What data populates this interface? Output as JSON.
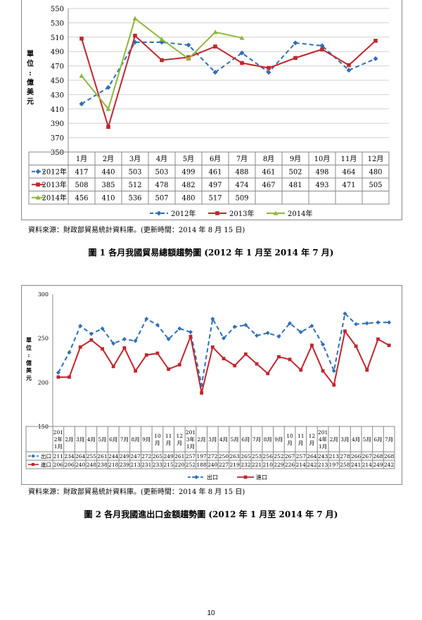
{
  "chart_data": [
    {
      "type": "line",
      "ylabel": "單位：億美元",
      "ylim": [
        350,
        550
      ],
      "yticks": [
        350,
        370,
        390,
        410,
        430,
        450,
        470,
        490,
        510,
        530,
        550
      ],
      "categories": [
        "1月",
        "2月",
        "3月",
        "4月",
        "5月",
        "6月",
        "7月",
        "8月",
        "9月",
        "10月",
        "11月",
        "12月"
      ],
      "series": [
        {
          "name": "2012年",
          "color": "#2e6fb7",
          "dash": true,
          "marker": "diamond",
          "values": [
            417,
            440,
            503,
            503,
            499,
            461,
            488,
            461,
            502,
            498,
            464,
            480
          ]
        },
        {
          "name": "2013年",
          "color": "#c0262d",
          "dash": false,
          "marker": "square",
          "values": [
            508,
            385,
            512,
            478,
            482,
            497,
            474,
            467,
            481,
            493,
            471,
            505
          ]
        },
        {
          "name": "2014年",
          "color": "#8cb83c",
          "dash": false,
          "marker": "triangle",
          "values": [
            456,
            410,
            536,
            507,
            480,
            517,
            509,
            null,
            null,
            null,
            null,
            null
          ]
        }
      ],
      "legend": "bottom"
    },
    {
      "type": "line",
      "ylabel": "單位：億美元",
      "ylim": [
        150,
        300
      ],
      "yticks": [
        150,
        200,
        250,
        300
      ],
      "categories": [
        "2012年1月",
        "2月",
        "3月",
        "4月",
        "5月",
        "6月",
        "7月",
        "8月",
        "9月",
        "10月",
        "11月",
        "12月",
        "2013年1月",
        "2月",
        "3月",
        "4月",
        "5月",
        "6月",
        "7月",
        "8月",
        "9月",
        "10月",
        "11月",
        "12月",
        "2014年1月",
        "2月",
        "3月",
        "4月",
        "5月",
        "6月",
        "7月"
      ],
      "category_lines": [
        [
          "201",
          "2年",
          "1月"
        ],
        [
          "2月"
        ],
        [
          "3月"
        ],
        [
          "4月"
        ],
        [
          "5月"
        ],
        [
          "6月"
        ],
        [
          "7月"
        ],
        [
          "8月"
        ],
        [
          "9月"
        ],
        [
          "10",
          "月"
        ],
        [
          "11",
          "月"
        ],
        [
          "12",
          "月"
        ],
        [
          "201",
          "3年",
          "1月"
        ],
        [
          "2月"
        ],
        [
          "3月"
        ],
        [
          "4月"
        ],
        [
          "5月"
        ],
        [
          "6月"
        ],
        [
          "7月"
        ],
        [
          "8月"
        ],
        [
          "9月"
        ],
        [
          "10",
          "月"
        ],
        [
          "11",
          "月"
        ],
        [
          "12",
          "月"
        ],
        [
          "201",
          "4年",
          "1月"
        ],
        [
          "2月"
        ],
        [
          "3月"
        ],
        [
          "4月"
        ],
        [
          "5月"
        ],
        [
          "6月"
        ],
        [
          "7月"
        ]
      ],
      "series": [
        {
          "name": "出口",
          "color": "#2e6fb7",
          "dash": true,
          "marker": "diamond",
          "values": [
            211,
            234,
            264,
            255,
            261,
            244,
            249,
            247,
            272,
            265,
            249,
            261,
            257,
            197,
            272,
            250,
            263,
            265,
            253,
            256,
            252,
            267,
            257,
            264,
            243,
            213,
            278,
            266,
            267,
            268,
            268
          ]
        },
        {
          "name": "進口",
          "color": "#c0262d",
          "dash": false,
          "marker": "square",
          "values": [
            206,
            206,
            240,
            248,
            238,
            218,
            239,
            213,
            231,
            233,
            215,
            220,
            252,
            188,
            240,
            227,
            219,
            232,
            221,
            210,
            229,
            226,
            214,
            242,
            213,
            197,
            258,
            241,
            214,
            249,
            242
          ]
        }
      ],
      "legend": "table-right"
    }
  ],
  "source1": "資料來源：財政部貿易統計資料庫。(更新時間：2014 年 8 月 15 日)",
  "caption1": "圖 1 各月我國貿易總額趨勢圖 (2012 年 1 月至 2014 年 7 月)",
  "source2": "資料來源：財政部貿易統計資料庫。(更新時間：2014 年 8 月 15 日)",
  "caption2": "圖 2 各月我國進出口金額趨勢圖 (2012 年 1 月至 2014 年 7 月)",
  "page_number": "10"
}
